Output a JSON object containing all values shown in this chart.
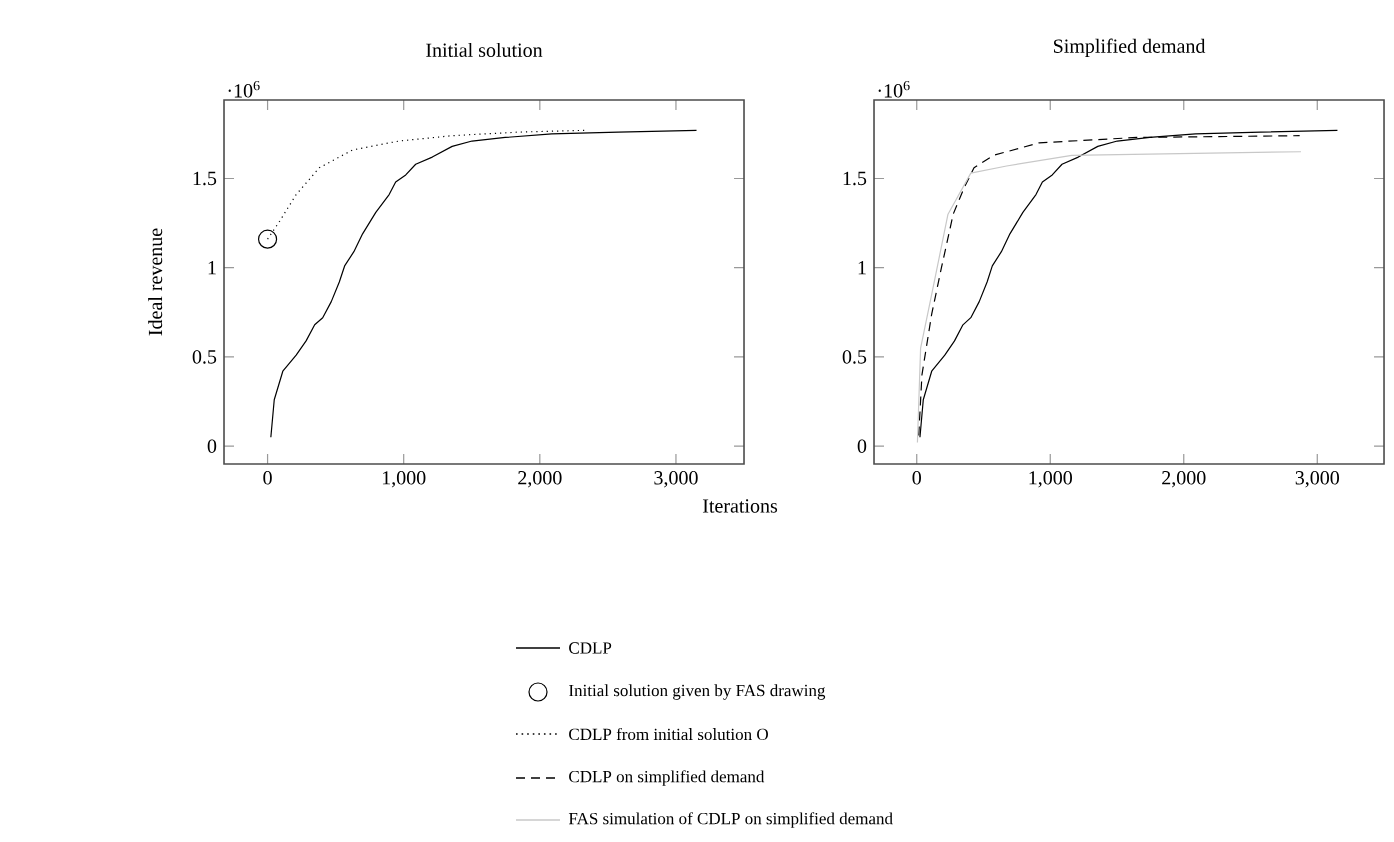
{
  "chart_data": [
    {
      "type": "line",
      "title": "Initial solution",
      "ylabel": "Ideal revenue",
      "xlabel": "Iterations",
      "annotations": [
        "·10$^{6}$"
      ],
      "legend": "bottom",
      "xlim": [
        -320,
        3500
      ],
      "xticks": [
        0,
        {
          "value": 1000,
          "label": "1,000"
        },
        {
          "value": 2000,
          "label": "2,000"
        },
        {
          "value": 3000,
          "label": "3,000"
        }
      ],
      "ylim": [
        -0.1,
        1.94
      ],
      "yticks": [
        0,
        0.5,
        1,
        1.5
      ],
      "series": [
        {
          "name": "CDLP",
          "color": "#000000",
          "line_style": "solid",
          "x": [
            24,
            49,
            112,
            210,
            283,
            346,
            405,
            468,
            527,
            566,
            634,
            698,
            795,
            893,
            941,
            1015,
            1088,
            1210,
            1356,
            1502,
            1746,
            2088,
            2576,
            3151
          ],
          "values": [
            0.05,
            0.26,
            0.42,
            0.51,
            0.59,
            0.68,
            0.72,
            0.81,
            0.92,
            1.01,
            1.09,
            1.19,
            1.31,
            1.41,
            1.48,
            1.52,
            1.58,
            1.62,
            1.68,
            1.71,
            1.73,
            1.75,
            1.76,
            1.77
          ]
        },
        {
          "name": "Initial solution given by FAS drawing",
          "type": "scatter",
          "marker": "circle",
          "color": "#000000",
          "x": [
            0
          ],
          "values": [
            1.16
          ]
        },
        {
          "name": "CDLP from initial solution O",
          "color": "#000000",
          "line_style": "dotted",
          "x": [
            0,
            88,
            210,
            380,
            624,
            966,
            1356,
            1844,
            2332
          ],
          "values": [
            1.16,
            1.26,
            1.41,
            1.56,
            1.66,
            1.71,
            1.74,
            1.76,
            1.77
          ]
        }
      ]
    },
    {
      "type": "line",
      "title": "Simplified demand",
      "annotations": [
        "·10$^{6}$"
      ],
      "legend": "bottom",
      "xlim": [
        -320,
        3500
      ],
      "xticks": [
        0,
        {
          "value": 1000,
          "label": "1,000"
        },
        {
          "value": 2000,
          "label": "2,000"
        },
        {
          "value": 3000,
          "label": "3,000"
        }
      ],
      "ylim": [
        -0.1,
        1.94
      ],
      "yticks": [
        0,
        0.5,
        1,
        1.5
      ],
      "series": [
        {
          "color": "#000000",
          "line_style": "solid",
          "x": [
            24,
            49,
            112,
            210,
            283,
            346,
            405,
            468,
            527,
            566,
            634,
            698,
            795,
            893,
            941,
            1015,
            1088,
            1210,
            1356,
            1502,
            1746,
            2088,
            2576,
            3151
          ],
          "values": [
            0.05,
            0.26,
            0.42,
            0.51,
            0.59,
            0.68,
            0.72,
            0.81,
            0.92,
            1.01,
            1.09,
            1.19,
            1.31,
            1.41,
            1.48,
            1.52,
            1.58,
            1.62,
            1.68,
            1.71,
            1.73,
            1.75,
            1.76,
            1.77
          ]
        },
        {
          "name": "CDLP on simplified demand",
          "color": "#000000",
          "line_style": "dashed",
          "x": [
            15,
            39,
            112,
            185,
            273,
            356,
            429,
            576,
            917,
            1649,
            2868
          ],
          "values": [
            0.06,
            0.4,
            0.74,
            1.0,
            1.3,
            1.45,
            1.56,
            1.63,
            1.7,
            1.73,
            1.74
          ]
        },
        {
          "name": "FAS simulation of CDLP on simplified demand",
          "color": "#c8c8c8",
          "line_style": "solid",
          "x": [
            5,
            29,
            112,
            234,
            405,
            673,
            1161,
            2878
          ],
          "values": [
            0.02,
            0.55,
            0.85,
            1.3,
            1.53,
            1.57,
            1.63,
            1.65
          ]
        }
      ]
    }
  ]
}
